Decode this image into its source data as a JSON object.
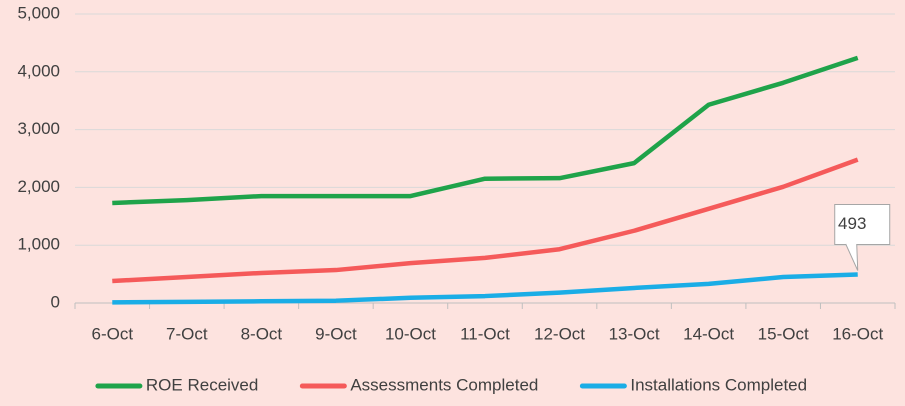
{
  "chart_data": {
    "type": "line",
    "categories": [
      "6-Oct",
      "7-Oct",
      "8-Oct",
      "9-Oct",
      "10-Oct",
      "11-Oct",
      "12-Oct",
      "13-Oct",
      "14-Oct",
      "15-Oct",
      "16-Oct"
    ],
    "series": [
      {
        "name": "ROE Received",
        "color": "#1fa34a",
        "values": [
          1730,
          1780,
          1850,
          1850,
          1850,
          2150,
          2160,
          2420,
          3430,
          3810,
          4240
        ]
      },
      {
        "name": "Assessments Completed",
        "color": "#f55a5a",
        "values": [
          380,
          450,
          520,
          570,
          690,
          780,
          930,
          1250,
          1630,
          2010,
          2480
        ]
      },
      {
        "name": "Installations Completed",
        "color": "#1aade6",
        "values": [
          10,
          20,
          30,
          40,
          90,
          120,
          180,
          260,
          330,
          450,
          493
        ]
      }
    ],
    "ylim": [
      0,
      5000
    ],
    "yticks": [
      0,
      {
        "value": 1000,
        "label": "1,000"
      },
      {
        "value": 2000,
        "label": "2,000"
      },
      {
        "value": 3000,
        "label": "3,000"
      },
      {
        "value": 4000,
        "label": "4,000"
      },
      {
        "value": 5000,
        "label": "5,000"
      }
    ],
    "grid": true,
    "legend": "bottom"
  }
}
